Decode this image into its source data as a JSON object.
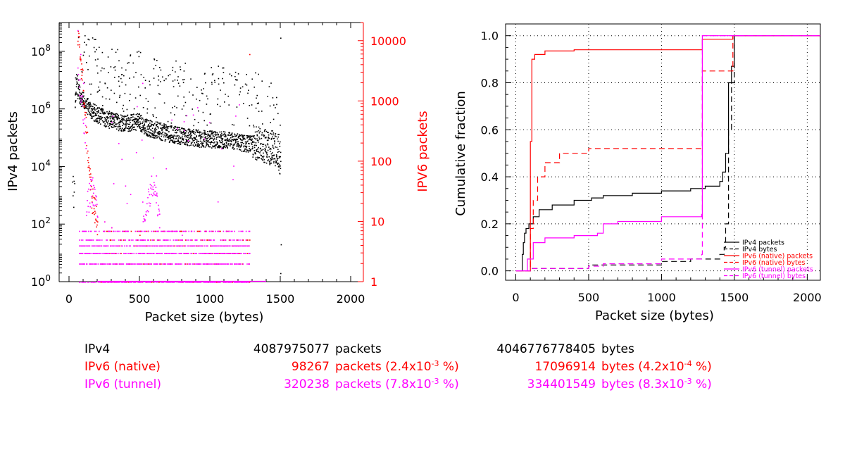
{
  "chart_data": [
    {
      "type": "scatter",
      "xlabel": "Packet size (bytes)",
      "ylabel": "IPv4 packets",
      "y2label": "IPV6 packets",
      "xlim": [
        -70,
        2090
      ],
      "ylim": [
        1,
        1000000000.0
      ],
      "y2lim": [
        1,
        20000
      ],
      "yscale": "log",
      "y2scale": "log",
      "x_ticks": [
        "0",
        "500",
        "1000",
        "1500",
        "2000"
      ],
      "y_ticks": [
        "10^0",
        "10^2",
        "10^4",
        "10^6",
        "10^8"
      ],
      "y2_ticks": [
        "1",
        "10",
        "100",
        "1000",
        "10000"
      ],
      "grid": false,
      "series": [
        {
          "name": "IPv4",
          "axis": "left",
          "color": "#000000",
          "points": [
            [
              20,
              3000
            ],
            [
              25,
              1000
            ],
            [
              30,
              400
            ],
            [
              40,
              1200000
            ],
            [
              44,
              2000000
            ],
            [
              52,
              12000000
            ],
            [
              60,
              3000000
            ],
            [
              64,
              6000000
            ],
            [
              70,
              2500000
            ],
            [
              80,
              2000000
            ],
            [
              100,
              1500000
            ],
            [
              150,
              700000
            ],
            [
              200,
              500000
            ],
            [
              300,
              300000
            ],
            [
              400,
              250000
            ],
            [
              500,
              300000
            ],
            [
              520,
              200000
            ],
            [
              600,
              150000
            ],
            [
              700,
              110000
            ],
            [
              800,
              90000
            ],
            [
              900,
              75000
            ],
            [
              1000,
              70000
            ],
            [
              1100,
              65000
            ],
            [
              1200,
              55000
            ],
            [
              1300,
              45000
            ],
            [
              1400,
              30000
            ],
            [
              1450,
              25000
            ],
            [
              1480,
              20000
            ],
            [
              1492,
              12000
            ],
            [
              1500,
              300000000
            ],
            [
              1503,
              20
            ],
            [
              1500,
              2
            ]
          ],
          "note_bands": [
            [
              40,
              1000000,
              3
            ],
            [
              1500,
              30000,
              3
            ]
          ]
        },
        {
          "name": "IPv6 (native)",
          "axis": "right",
          "color": "#ff0000",
          "points": [
            [
              60,
              10000
            ],
            [
              70,
              8000
            ],
            [
              80,
              5000
            ],
            [
              90,
              3000
            ],
            [
              100,
              1500
            ],
            [
              110,
              600
            ],
            [
              120,
              300
            ],
            [
              130,
              150
            ],
            [
              140,
              80
            ],
            [
              150,
              40
            ],
            [
              160,
              25
            ],
            [
              180,
              15
            ],
            [
              200,
              10
            ],
            [
              250,
              10
            ],
            [
              300,
              8
            ],
            [
              400,
              7
            ],
            [
              500,
              6
            ],
            [
              600,
              5
            ],
            [
              700,
              4
            ],
            [
              800,
              5
            ],
            [
              900,
              4
            ],
            [
              1000,
              4
            ],
            [
              1100,
              3
            ],
            [
              1200,
              3
            ],
            [
              1280,
              6000
            ]
          ]
        },
        {
          "name": "IPv6 (tunnel)",
          "axis": "right",
          "color": "#ff00ff",
          "points": [
            [
              50,
              20000
            ],
            [
              60,
              15000
            ],
            [
              80,
              6000
            ],
            [
              100,
              2000
            ],
            [
              150,
              40
            ],
            [
              160,
              50
            ],
            [
              170,
              30
            ],
            [
              200,
              12
            ],
            [
              250,
              10
            ],
            [
              300,
              8
            ],
            [
              350,
              200
            ],
            [
              400,
              7
            ],
            [
              450,
              5
            ],
            [
              500,
              3
            ],
            [
              520,
              2000
            ],
            [
              560,
              35
            ],
            [
              580,
              40
            ],
            [
              600,
              45
            ],
            [
              620,
              30
            ],
            [
              640,
              8
            ],
            [
              700,
              5
            ],
            [
              800,
              6
            ],
            [
              900,
              5
            ],
            [
              1000,
              5
            ],
            [
              1100,
              4
            ],
            [
              1200,
              4
            ],
            [
              1280,
              3
            ]
          ],
          "levels": [
            1,
            2,
            3,
            4,
            5,
            7
          ]
        }
      ]
    },
    {
      "type": "line",
      "xlabel": "Packet size (bytes)",
      "ylabel": "Cumulative fraction",
      "xlim": [
        -70,
        2090
      ],
      "ylim": [
        -0.04,
        1.05
      ],
      "x_ticks": [
        "0",
        "500",
        "1000",
        "1500",
        "2000"
      ],
      "y_ticks": [
        "0.0",
        "0.2",
        "0.4",
        "0.6",
        "0.8",
        "1.0"
      ],
      "grid": true,
      "legend_position": "bottom-right",
      "series": [
        {
          "name": "IPv4 packets",
          "color": "#000000",
          "dash": "solid",
          "points": [
            [
              0,
              0
            ],
            [
              40,
              0
            ],
            [
              44,
              0.07
            ],
            [
              52,
              0.12
            ],
            [
              60,
              0.16
            ],
            [
              70,
              0.18
            ],
            [
              90,
              0.2
            ],
            [
              120,
              0.23
            ],
            [
              160,
              0.26
            ],
            [
              250,
              0.28
            ],
            [
              400,
              0.3
            ],
            [
              520,
              0.31
            ],
            [
              600,
              0.32
            ],
            [
              800,
              0.33
            ],
            [
              1000,
              0.34
            ],
            [
              1200,
              0.35
            ],
            [
              1300,
              0.36
            ],
            [
              1400,
              0.38
            ],
            [
              1420,
              0.42
            ],
            [
              1440,
              0.5
            ],
            [
              1460,
              0.8
            ],
            [
              1480,
              0.87
            ],
            [
              1500,
              1.0
            ],
            [
              2090,
              1.0
            ]
          ]
        },
        {
          "name": "IPv4 bytes",
          "color": "#000000",
          "dash": "dashed",
          "points": [
            [
              0,
              0
            ],
            [
              100,
              0.01
            ],
            [
              500,
              0.025
            ],
            [
              1000,
              0.04
            ],
            [
              1200,
              0.05
            ],
            [
              1400,
              0.07
            ],
            [
              1430,
              0.1
            ],
            [
              1440,
              0.2
            ],
            [
              1460,
              0.6
            ],
            [
              1480,
              0.8
            ],
            [
              1500,
              1.0
            ],
            [
              2090,
              1.0
            ]
          ]
        },
        {
          "name": "IPv6 (native) packets",
          "color": "#ff0000",
          "dash": "solid",
          "points": [
            [
              0,
              0
            ],
            [
              60,
              0
            ],
            [
              100,
              0.55
            ],
            [
              110,
              0.9
            ],
            [
              130,
              0.92
            ],
            [
              200,
              0.935
            ],
            [
              400,
              0.94
            ],
            [
              1000,
              0.94
            ],
            [
              1276,
              0.94
            ],
            [
              1280,
              0.985
            ],
            [
              1480,
              0.985
            ],
            [
              1490,
              1.0
            ],
            [
              2090,
              1.0
            ]
          ]
        },
        {
          "name": "IPv6 (native) bytes",
          "color": "#ff0000",
          "dash": "dashed",
          "points": [
            [
              0,
              0
            ],
            [
              60,
              0
            ],
            [
              100,
              0.18
            ],
            [
              120,
              0.3
            ],
            [
              150,
              0.4
            ],
            [
              200,
              0.46
            ],
            [
              300,
              0.5
            ],
            [
              500,
              0.52
            ],
            [
              1000,
              0.52
            ],
            [
              1276,
              0.52
            ],
            [
              1280,
              0.85
            ],
            [
              1480,
              0.85
            ],
            [
              1490,
              1.0
            ],
            [
              2090,
              1.0
            ]
          ]
        },
        {
          "name": "IPv6 (tunnel) packets",
          "color": "#ff00ff",
          "dash": "solid",
          "points": [
            [
              0,
              0
            ],
            [
              60,
              0
            ],
            [
              80,
              0.05
            ],
            [
              120,
              0.12
            ],
            [
              200,
              0.14
            ],
            [
              400,
              0.15
            ],
            [
              560,
              0.16
            ],
            [
              600,
              0.2
            ],
            [
              700,
              0.21
            ],
            [
              1000,
              0.23
            ],
            [
              1276,
              0.24
            ],
            [
              1280,
              1.0
            ],
            [
              2090,
              1.0
            ]
          ]
        },
        {
          "name": "IPv6 (tunnel) bytes",
          "color": "#ff00ff",
          "dash": "dashed",
          "points": [
            [
              0,
              0
            ],
            [
              60,
              0
            ],
            [
              100,
              0.01
            ],
            [
              500,
              0.02
            ],
            [
              600,
              0.03
            ],
            [
              1000,
              0.05
            ],
            [
              1276,
              0.07
            ],
            [
              1280,
              1.0
            ],
            [
              2090,
              1.0
            ]
          ]
        }
      ]
    }
  ],
  "summary": {
    "rows": [
      {
        "name": "IPv4",
        "packets": "4087975077",
        "packets_label": "packets",
        "bytes": "4046776778405",
        "bytes_label": "bytes",
        "color": "#000000"
      },
      {
        "name": "IPv6 (native)",
        "packets": "98267",
        "packets_label": "packets (2.4x10",
        "packets_exp": "-3",
        "packets_tail": " %)",
        "bytes": "17096914",
        "bytes_label": "bytes (4.2x10",
        "bytes_exp": "-4",
        "bytes_tail": " %)",
        "color": "#ff0000"
      },
      {
        "name": "IPv6 (tunnel)",
        "packets": "320238",
        "packets_label": "packets (7.8x10",
        "packets_exp": "-3",
        "packets_tail": " %)",
        "bytes": "334401549",
        "bytes_label": "bytes (8.3x10",
        "bytes_exp": "-3",
        "bytes_tail": " %)",
        "color": "#ff00ff"
      }
    ]
  }
}
